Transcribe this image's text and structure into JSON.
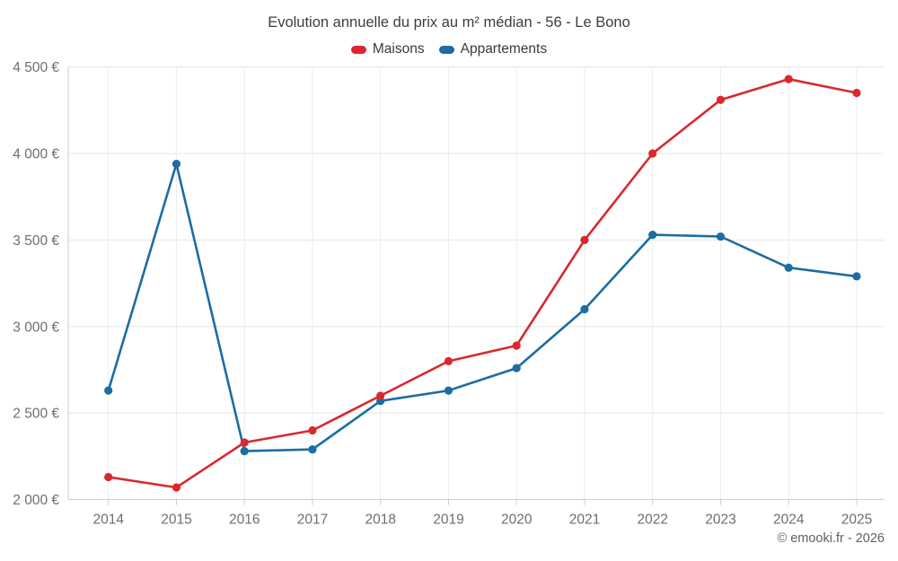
{
  "header": {
    "title": "Evolution annuelle du prix au m² médian - 56 - Le Bono"
  },
  "legend": {
    "items": [
      {
        "label": "Maisons",
        "color": "#d9282e"
      },
      {
        "label": "Appartements",
        "color": "#1b6da3"
      }
    ]
  },
  "footer": {
    "copyright": "© emooki.fr - 2026"
  },
  "chart_data": {
    "type": "line",
    "title": "Evolution annuelle du prix au m² médian - 56 - Le Bono",
    "categories": [
      "2014",
      "2015",
      "2016",
      "2017",
      "2018",
      "2019",
      "2020",
      "2021",
      "2022",
      "2023",
      "2024",
      "2025"
    ],
    "series": [
      {
        "name": "Maisons",
        "color": "#d9282e",
        "values": [
          2130,
          2070,
          2330,
          2400,
          2600,
          2800,
          2890,
          3500,
          4000,
          4310,
          4430,
          4350
        ]
      },
      {
        "name": "Appartements",
        "color": "#1b6da3",
        "values": [
          2630,
          3940,
          2280,
          2290,
          2570,
          2630,
          2760,
          3100,
          3530,
          3520,
          3340,
          3290
        ]
      }
    ],
    "xlabel": "",
    "ylabel": "",
    "ylim": [
      2000,
      4500
    ],
    "ytick_step": 500,
    "ytick_labels": [
      "2 000 €",
      "2 500 €",
      "3 000 €",
      "3 500 €",
      "4 000 €",
      "4 500 €"
    ],
    "grid": true,
    "legend_position": "top",
    "marker": "circle"
  }
}
